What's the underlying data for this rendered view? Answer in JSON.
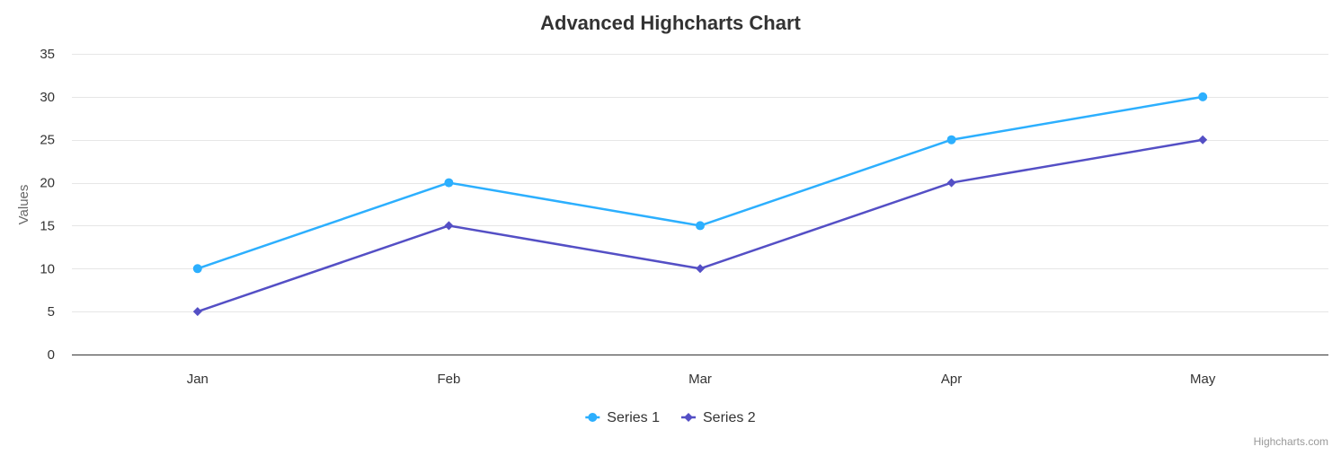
{
  "chart_data": {
    "type": "line",
    "title": "Advanced Highcharts Chart",
    "ylabel": "Values",
    "xlabel": "",
    "categories": [
      "Jan",
      "Feb",
      "Mar",
      "Apr",
      "May"
    ],
    "ylim": [
      0,
      35
    ],
    "yticks": [
      0,
      5,
      10,
      15,
      20,
      25,
      30,
      35
    ],
    "grid": true,
    "legend_position": "bottom-center",
    "series": [
      {
        "name": "Series 1",
        "values": [
          10,
          20,
          15,
          25,
          30
        ],
        "color": "#2caffe",
        "marker": "circle"
      },
      {
        "name": "Series 2",
        "values": [
          5,
          15,
          10,
          20,
          25
        ],
        "color": "#544fc5",
        "marker": "diamond"
      }
    ]
  },
  "credits": "Highcharts.com"
}
